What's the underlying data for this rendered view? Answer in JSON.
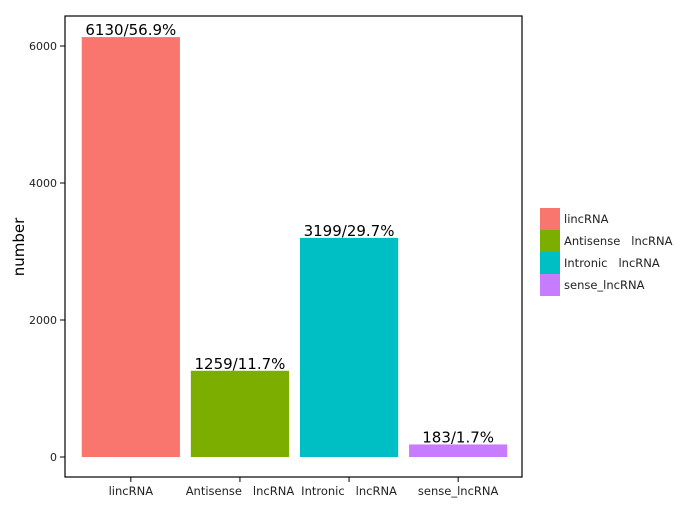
{
  "chart_data": {
    "type": "bar",
    "categories": [
      "lincRNA",
      "Antisense   lncRNA",
      "Intronic   lncRNA",
      "sense_lncRNA"
    ],
    "values": [
      6130,
      1259,
      3199,
      183
    ],
    "data_labels": [
      "6130/56.9%",
      "1259/11.7%",
      "3199/29.7%",
      "183/1.7%"
    ],
    "colors": [
      "#F8766D",
      "#7CAE00",
      "#00BFC4",
      "#C77CFF"
    ],
    "xlabel": "",
    "ylabel": "number",
    "yticks": [
      0,
      2000,
      4000,
      6000
    ],
    "ytick_labels": [
      "0",
      "2000",
      "4000",
      "6000"
    ],
    "ylim": [
      -292,
      6438
    ],
    "grid": false,
    "legend": {
      "placement": "right",
      "entries": [
        "lincRNA",
        "Antisense   lncRNA",
        "Intronic   lncRNA",
        "sense_lncRNA"
      ]
    }
  }
}
